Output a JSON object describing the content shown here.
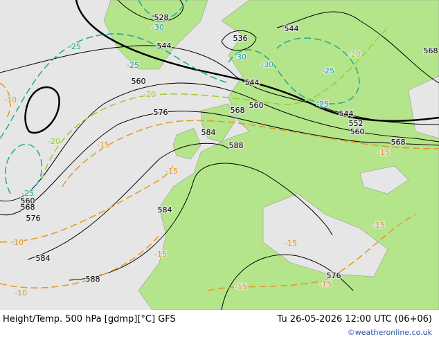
{
  "map": {
    "height_labels": [
      "528",
      "536",
      "544",
      "544",
      "544",
      "544",
      "552",
      "560",
      "560",
      "560",
      "568",
      "568",
      "568",
      "576",
      "584",
      "588",
      "584",
      "560",
      "568",
      "576",
      "584",
      "588",
      "576"
    ],
    "temperature_labels": [
      "-30",
      "-30",
      "-30",
      "-25",
      "-25",
      "-25",
      "-25",
      "-25",
      "-20",
      "-20",
      "-20",
      "-15",
      "-15",
      "-15",
      "-15",
      "-15",
      "-15",
      "-15",
      "-15",
      "-10",
      "-10",
      "-10"
    ]
  },
  "footer": {
    "title": "Height/Temp. 500 hPa [gdmp][°C] GFS",
    "datetime": "Tu 26-05-2026 12:00 UTC (06+06)",
    "credit": "©weatheronline.co.uk"
  }
}
